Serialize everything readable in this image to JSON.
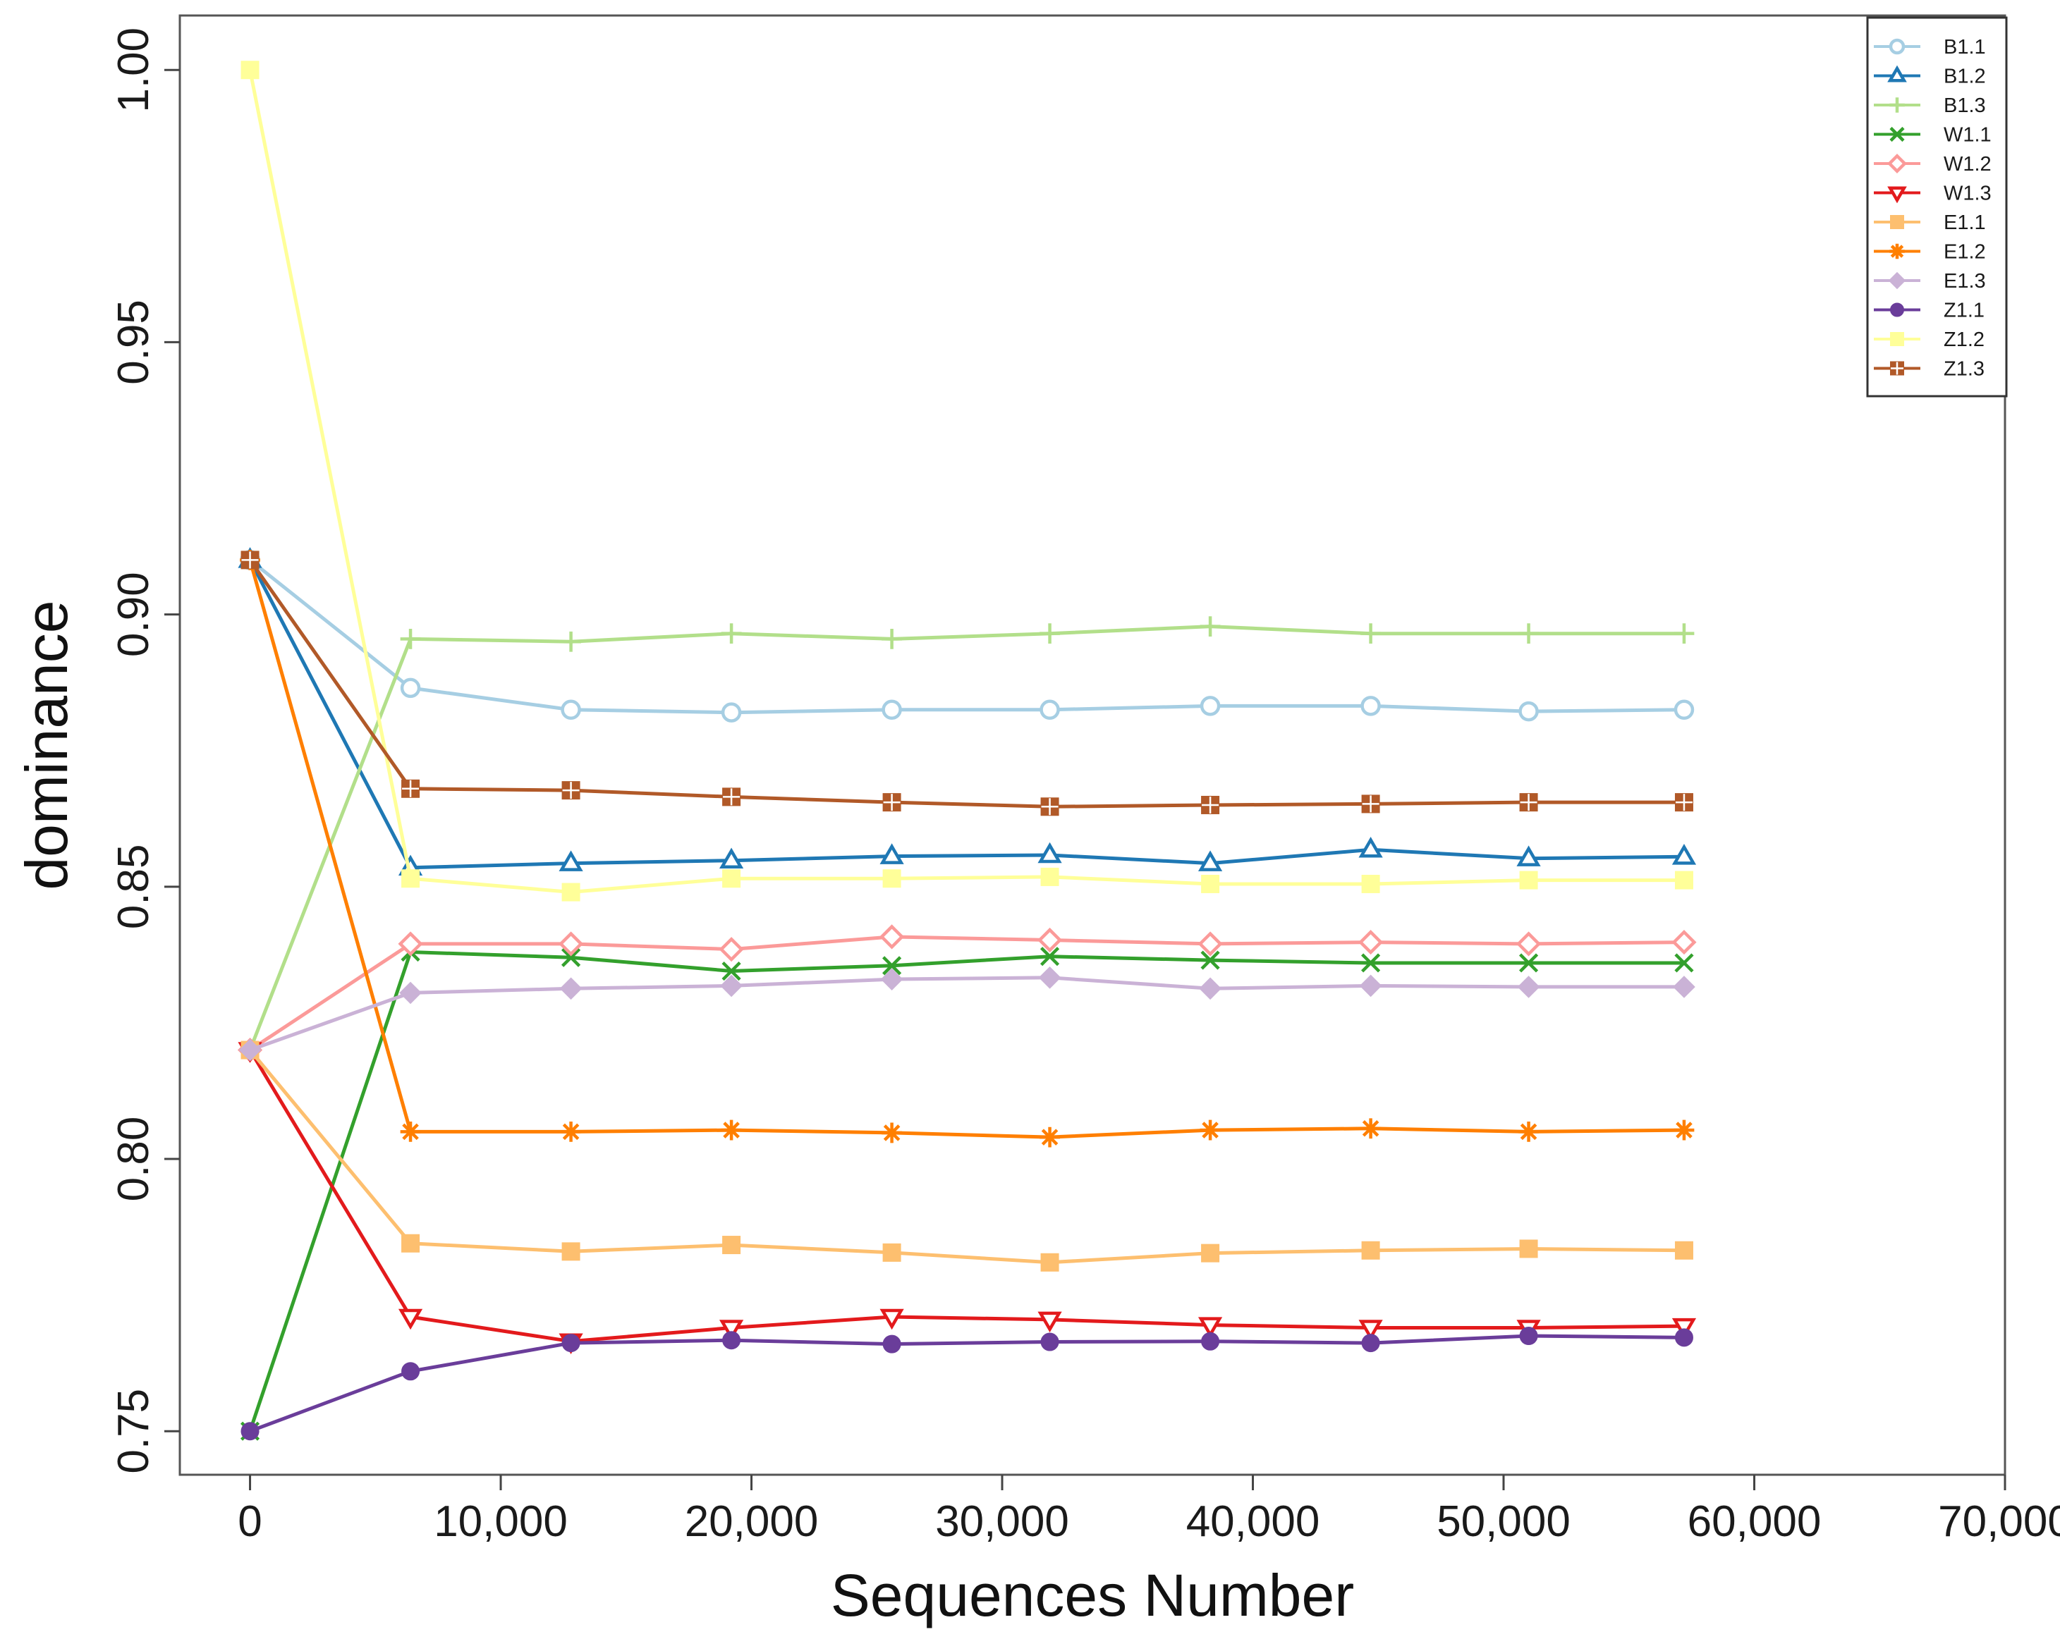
{
  "chart_data": {
    "type": "line",
    "title": "",
    "xlabel": "Sequences Number",
    "ylabel": "dominance",
    "xlim": [
      -2800,
      70000
    ],
    "ylim": [
      0.742,
      1.01
    ],
    "xticks": [
      0,
      10000,
      20000,
      30000,
      40000,
      50000,
      60000,
      70000
    ],
    "xtick_labels": [
      "0",
      "10,000",
      "20,000",
      "30,000",
      "40,000",
      "50,000",
      "60,000",
      "70,000"
    ],
    "yticks": [
      0.75,
      0.8,
      0.85,
      0.9,
      0.95,
      1.0
    ],
    "ytick_labels": [
      "0.75",
      "0.80",
      "0.85",
      "0.90",
      "0.95",
      "1.00"
    ],
    "grid": false,
    "legend_position": "top-right",
    "x": [
      0,
      6400,
      12800,
      19200,
      25600,
      31900,
      38300,
      44700,
      51000,
      57200
    ],
    "series": [
      {
        "name": "B1.1",
        "color": "#a6cee3",
        "marker": "circle",
        "values": [
          0.91,
          0.8865,
          0.8825,
          0.882,
          0.8825,
          0.8825,
          0.8832,
          0.8832,
          0.8822,
          0.8825
        ]
      },
      {
        "name": "B1.2",
        "color": "#1f78b4",
        "marker": "triangle-up",
        "values": [
          0.91,
          0.8535,
          0.8543,
          0.8548,
          0.8556,
          0.8558,
          0.8543,
          0.8568,
          0.8552,
          0.8555
        ]
      },
      {
        "name": "B1.3",
        "color": "#b2df8a",
        "marker": "plus",
        "values": [
          0.82,
          0.8955,
          0.895,
          0.8965,
          0.8955,
          0.8965,
          0.8978,
          0.8965,
          0.8965,
          0.8965
        ]
      },
      {
        "name": "W1.1",
        "color": "#33a02c",
        "marker": "cross",
        "values": [
          0.75,
          0.838,
          0.837,
          0.8345,
          0.8355,
          0.8372,
          0.8365,
          0.836,
          0.836,
          0.836
        ]
      },
      {
        "name": "W1.2",
        "color": "#fb9a99",
        "marker": "diamond",
        "values": [
          0.82,
          0.8395,
          0.8395,
          0.8385,
          0.8408,
          0.8402,
          0.8395,
          0.8398,
          0.8395,
          0.8398
        ]
      },
      {
        "name": "W1.3",
        "color": "#e31a1c",
        "marker": "triangle-down",
        "values": [
          0.82,
          0.771,
          0.7665,
          0.769,
          0.771,
          0.7705,
          0.7695,
          0.769,
          0.769,
          0.7693
        ]
      },
      {
        "name": "E1.1",
        "color": "#fdbf6f",
        "marker": "square",
        "values": [
          0.82,
          0.7845,
          0.783,
          0.7842,
          0.7828,
          0.781,
          0.7827,
          0.7832,
          0.7835,
          0.7832
        ]
      },
      {
        "name": "E1.2",
        "color": "#ff7f00",
        "marker": "asterisk",
        "values": [
          0.91,
          0.805,
          0.805,
          0.8053,
          0.8048,
          0.804,
          0.8053,
          0.8056,
          0.805,
          0.8053
        ]
      },
      {
        "name": "E1.3",
        "color": "#cab2d6",
        "marker": "diamond-filled",
        "values": [
          0.82,
          0.8305,
          0.8313,
          0.8318,
          0.833,
          0.8333,
          0.8313,
          0.8318,
          0.8316,
          0.8316
        ]
      },
      {
        "name": "Z1.1",
        "color": "#6a3d9a",
        "marker": "circle-filled",
        "values": [
          0.75,
          0.761,
          0.7662,
          0.7667,
          0.766,
          0.7664,
          0.7665,
          0.7662,
          0.7675,
          0.7672
        ]
      },
      {
        "name": "Z1.2",
        "color": "#ffff99",
        "marker": "square",
        "values": [
          1.0,
          0.8515,
          0.849,
          0.8515,
          0.8515,
          0.8518,
          0.8505,
          0.8505,
          0.8512,
          0.8512
        ]
      },
      {
        "name": "Z1.3",
        "color": "#b15928",
        "marker": "square-grid",
        "values": [
          0.91,
          0.868,
          0.8677,
          0.8665,
          0.8655,
          0.8647,
          0.865,
          0.8652,
          0.8655,
          0.8655
        ]
      }
    ]
  }
}
